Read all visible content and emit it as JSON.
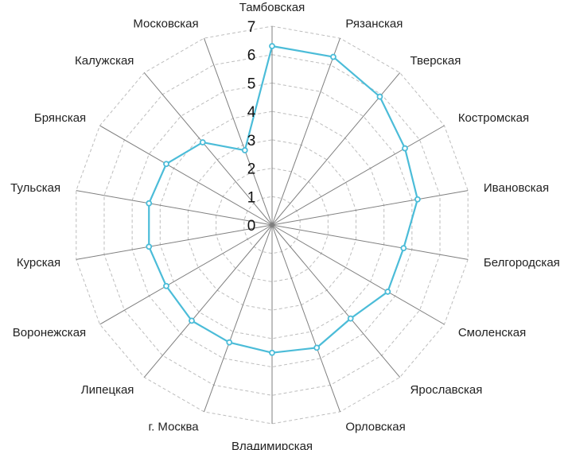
{
  "chart_data": {
    "type": "radar",
    "categories": [
      "Тамбовская",
      "Рязанская",
      "Тверская",
      "Костромская",
      "Ивановская",
      "Белгородская",
      "Смоленская",
      "Ярославская",
      "Орловская",
      "Владимирская",
      "г. Москва",
      "Липецкая",
      "Воронежская",
      "Курская",
      "Тульская",
      "Брянская",
      "Калужская",
      "Московская"
    ],
    "series": [
      {
        "values": [
          6.3,
          6.3,
          5.9,
          5.4,
          5.2,
          4.7,
          4.7,
          4.3,
          4.6,
          4.5,
          4.4,
          4.4,
          4.3,
          4.4,
          4.4,
          4.3,
          3.8,
          2.8
        ]
      }
    ],
    "rlim": [
      0,
      7
    ],
    "ticks": [
      "0",
      "1",
      "2",
      "3",
      "4",
      "5",
      "6",
      "7"
    ],
    "grid": true,
    "legend": "none",
    "colors": {
      "series": "#4bbcd8",
      "spokes": "#7f7f7f",
      "grid": "#bdbdbd"
    }
  }
}
